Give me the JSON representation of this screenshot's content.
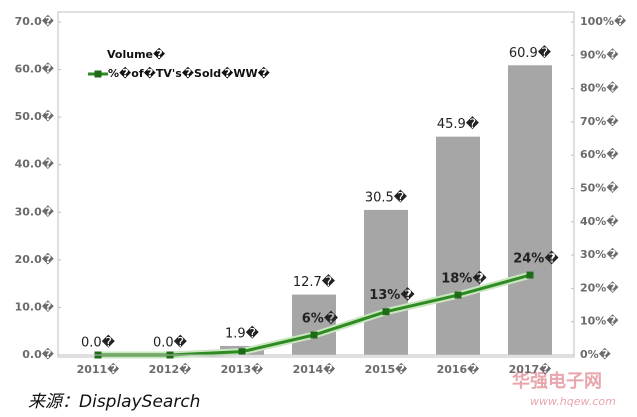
{
  "chart_data": {
    "type": "bar",
    "categories": [
      "2011�",
      "2012�",
      "2013�",
      "2014�",
      "2015�",
      "2016�",
      "2017�"
    ],
    "series": [
      {
        "name": "Volume�",
        "type": "bar",
        "color": "#a6a6a6",
        "values": [
          0.0,
          0.0,
          1.9,
          12.7,
          30.5,
          45.9,
          60.9
        ],
        "value_labels": [
          "0.0�",
          "0.0�",
          "1.9�",
          "12.7�",
          "30.5�",
          "45.9�",
          "60.9�"
        ]
      },
      {
        "name": "%�of�TV's�Sold�WW�",
        "type": "line",
        "axis": "y2",
        "color": "#2e8b22",
        "values": [
          0,
          0,
          1,
          6,
          13,
          18,
          24
        ],
        "value_labels": [
          null,
          null,
          null,
          "6%�",
          "13%�",
          "18%�",
          "24%�"
        ]
      }
    ],
    "ylim": [
      0,
      70
    ],
    "yticks": [
      {
        "value": 0,
        "label": "0.0�"
      },
      {
        "value": 10,
        "label": "10.0�"
      },
      {
        "value": 20,
        "label": "20.0�"
      },
      {
        "value": 30,
        "label": "30.0�"
      },
      {
        "value": 40,
        "label": "40.0�"
      },
      {
        "value": 50,
        "label": "50.0�"
      },
      {
        "value": 60,
        "label": "60.0�"
      },
      {
        "value": 70,
        "label": "70.0�"
      }
    ],
    "y2lim": [
      0,
      100
    ],
    "y2ticks": [
      {
        "value": 0,
        "label": "0%�"
      },
      {
        "value": 10,
        "label": "10%�"
      },
      {
        "value": 20,
        "label": "20%�"
      },
      {
        "value": 30,
        "label": "30%�"
      },
      {
        "value": 40,
        "label": "40%�"
      },
      {
        "value": 50,
        "label": "50%�"
      },
      {
        "value": 60,
        "label": "60%�"
      },
      {
        "value": 70,
        "label": "70%�"
      },
      {
        "value": 80,
        "label": "80%�"
      },
      {
        "value": 90,
        "label": "90%�"
      },
      {
        "value": 100,
        "label": "100%�"
      }
    ],
    "legend": "upper left"
  },
  "source": "来源：DisplaySearch",
  "watermark": {
    "name": "华强电子网",
    "url": "www.hqew.com"
  }
}
